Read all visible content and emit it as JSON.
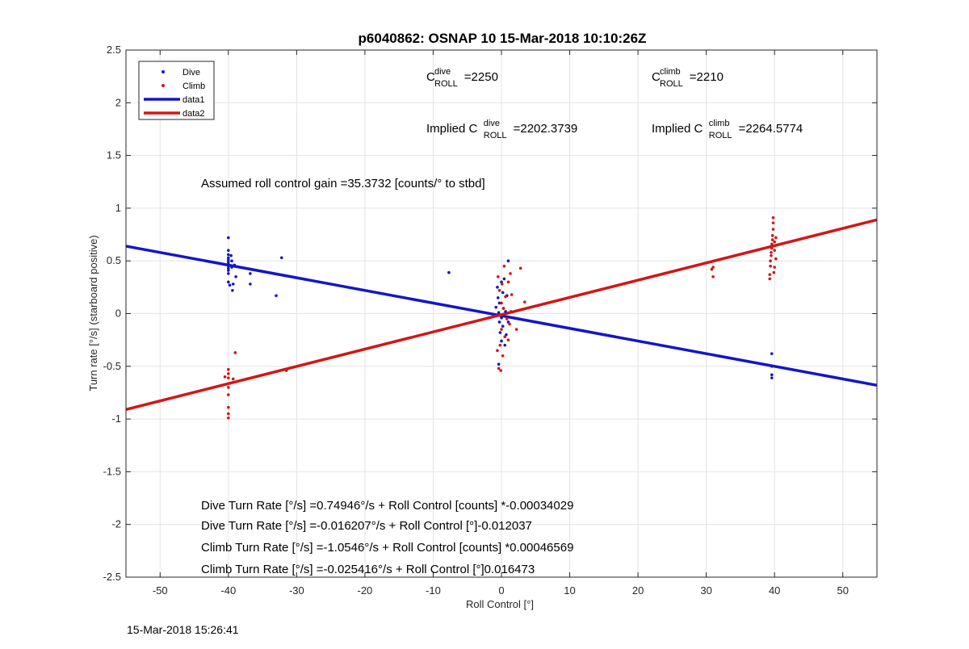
{
  "chart_data": {
    "type": "scatter",
    "title": "p6040862: OSNAP 10 15-Mar-2018 10:10:26Z",
    "xlabel": "Roll Control [°]",
    "ylabel": "Turn rate [°/s] (starboard positive)",
    "xlim": [
      -55,
      55
    ],
    "ylim": [
      -2.5,
      2.5
    ],
    "xticks": [
      -50,
      -40,
      -30,
      -20,
      -10,
      0,
      10,
      20,
      30,
      40,
      50
    ],
    "yticks": [
      -2.5,
      -2,
      -1.5,
      -1,
      -0.5,
      0,
      0.5,
      1,
      1.5,
      2,
      2.5
    ],
    "grid": true,
    "legend_location": "top-left",
    "series": [
      {
        "name": "Dive",
        "kind": "points",
        "color": "#1515c8",
        "points": [
          [
            -40,
            0.72
          ],
          [
            -40,
            0.6
          ],
          [
            -40,
            0.56
          ],
          [
            -40,
            0.53
          ],
          [
            -40,
            0.51
          ],
          [
            -40,
            0.49
          ],
          [
            -40,
            0.47
          ],
          [
            -40,
            0.45
          ],
          [
            -40,
            0.43
          ],
          [
            -40,
            0.41
          ],
          [
            -40,
            0.38
          ],
          [
            -40,
            0.3
          ],
          [
            -39.6,
            0.55
          ],
          [
            -39.5,
            0.5
          ],
          [
            -39.5,
            0.44
          ],
          [
            -39.3,
            0.28
          ],
          [
            -39.1,
            0.46
          ],
          [
            -38.9,
            0.35
          ],
          [
            -39.8,
            0.27
          ],
          [
            -39.4,
            0.22
          ],
          [
            -36.8,
            0.38
          ],
          [
            -36.8,
            0.28
          ],
          [
            -32.2,
            0.53
          ],
          [
            -33.0,
            0.17
          ],
          [
            -7.7,
            0.39
          ],
          [
            -0.8,
            0.06
          ],
          [
            -0.6,
            0.25
          ],
          [
            -0.5,
            0.15
          ],
          [
            -0.4,
            0.01
          ],
          [
            -0.3,
            -0.08
          ],
          [
            -0.3,
            0.1
          ],
          [
            -0.2,
            -0.18
          ],
          [
            0,
            0.3
          ],
          [
            0,
            -0.04
          ],
          [
            0,
            -0.26
          ],
          [
            0.2,
            0.2
          ],
          [
            0.2,
            -0.12
          ],
          [
            0.3,
            0.05
          ],
          [
            0.5,
            -0.3
          ],
          [
            0.6,
            0.02
          ],
          [
            0.7,
            -0.2
          ],
          [
            0.8,
            0.17
          ],
          [
            1.0,
            0.5
          ],
          [
            1.0,
            -0.08
          ],
          [
            -0.4,
            -0.48
          ],
          [
            0.4,
            0.33
          ],
          [
            39.6,
            -0.38
          ],
          [
            39.6,
            -0.5
          ],
          [
            39.6,
            -0.58
          ],
          [
            39.6,
            -0.61
          ]
        ]
      },
      {
        "name": "Climb",
        "kind": "points",
        "color": "#d21616",
        "points": [
          [
            -40,
            -0.53
          ],
          [
            -40,
            -0.57
          ],
          [
            -40,
            -0.61
          ],
          [
            -40,
            -0.7
          ],
          [
            -40,
            -0.77
          ],
          [
            -40,
            -0.89
          ],
          [
            -40,
            -0.95
          ],
          [
            -40,
            -0.99
          ],
          [
            -40.5,
            -0.6
          ],
          [
            -39.3,
            -0.62
          ],
          [
            -39.0,
            -0.37
          ],
          [
            -31.5,
            -0.54
          ],
          [
            -0.5,
            0.35
          ],
          [
            -0.4,
            -0.52
          ],
          [
            -0.3,
            0.22
          ],
          [
            -0.2,
            -0.3
          ],
          [
            0,
            0.1
          ],
          [
            0,
            -0.15
          ],
          [
            0.1,
            0.28
          ],
          [
            0.2,
            -0.4
          ],
          [
            0.3,
            0.05
          ],
          [
            0.5,
            -0.22
          ],
          [
            0.6,
            0.16
          ],
          [
            0.8,
            -0.05
          ],
          [
            1.0,
            0.3
          ],
          [
            1.0,
            -0.25
          ],
          [
            1.2,
            -0.1
          ],
          [
            1.3,
            0.38
          ],
          [
            1.4,
            0.02
          ],
          [
            -0.1,
            -0.54
          ],
          [
            0.4,
            0.45
          ],
          [
            1.5,
            0.18
          ],
          [
            2.2,
            -0.15
          ],
          [
            2.8,
            0.43
          ],
          [
            3.4,
            0.11
          ],
          [
            -0.6,
            -0.35
          ],
          [
            30.8,
            0.42
          ],
          [
            31.0,
            0.35
          ],
          [
            31.0,
            0.44
          ],
          [
            39.3,
            0.33
          ],
          [
            39.3,
            0.37
          ],
          [
            39.4,
            0.45
          ],
          [
            39.4,
            0.5
          ],
          [
            39.5,
            0.55
          ],
          [
            39.5,
            0.58
          ],
          [
            39.6,
            0.62
          ],
          [
            39.6,
            0.66
          ],
          [
            39.7,
            0.7
          ],
          [
            39.7,
            0.74
          ],
          [
            39.8,
            0.8
          ],
          [
            39.8,
            0.86
          ],
          [
            39.8,
            0.91
          ],
          [
            40.0,
            0.6
          ],
          [
            40.0,
            0.44
          ],
          [
            40.0,
            0.68
          ],
          [
            40.2,
            0.52
          ],
          [
            40.2,
            0.72
          ],
          [
            39.9,
            0.39
          ]
        ]
      },
      {
        "name": "data1",
        "kind": "line",
        "color": "#1515c8",
        "x": [
          -55,
          55
        ],
        "y": [
          0.64,
          -0.68
        ]
      },
      {
        "name": "data2",
        "kind": "line",
        "color": "#d21616",
        "x": [
          -55,
          55
        ],
        "y": [
          -0.91,
          0.89
        ]
      }
    ],
    "annotations": [
      {
        "id": "c-dive",
        "prefix": "C",
        "sup": "dive",
        "sub": "ROLL",
        "value": "=2250"
      },
      {
        "id": "c-climb",
        "prefix": "C",
        "sup": "climb",
        "sub": "ROLL",
        "value": "=2210"
      },
      {
        "id": "implied-dive",
        "prefix": "Implied C",
        "sup": "dive",
        "sub": "ROLL",
        "value": "=2202.3739"
      },
      {
        "id": "implied-climb",
        "prefix": "Implied C",
        "sup": "climb",
        "sub": "ROLL",
        "value": "=2264.5774"
      },
      {
        "id": "gain",
        "text": "Assumed roll control gain =35.3732 [counts/° to stbd]"
      },
      {
        "id": "dive-eq-counts",
        "text": "Dive Turn Rate [°/s] =0.74946°/s + Roll Control [counts] *-0.00034029"
      },
      {
        "id": "dive-eq-deg",
        "text": "Dive Turn Rate [°/s] =-0.016207°/s + Roll Control [°]-0.012037"
      },
      {
        "id": "climb-eq-counts",
        "text": "Climb Turn Rate [°/s] =-1.0546°/s + Roll Control [counts] *0.00046569"
      },
      {
        "id": "climb-eq-deg",
        "text": "Climb Turn Rate [°/s] =-0.025416°/s + Roll Control [°]0.016473"
      }
    ]
  },
  "footer": {
    "timestamp": "15-Mar-2018 15:26:41"
  }
}
